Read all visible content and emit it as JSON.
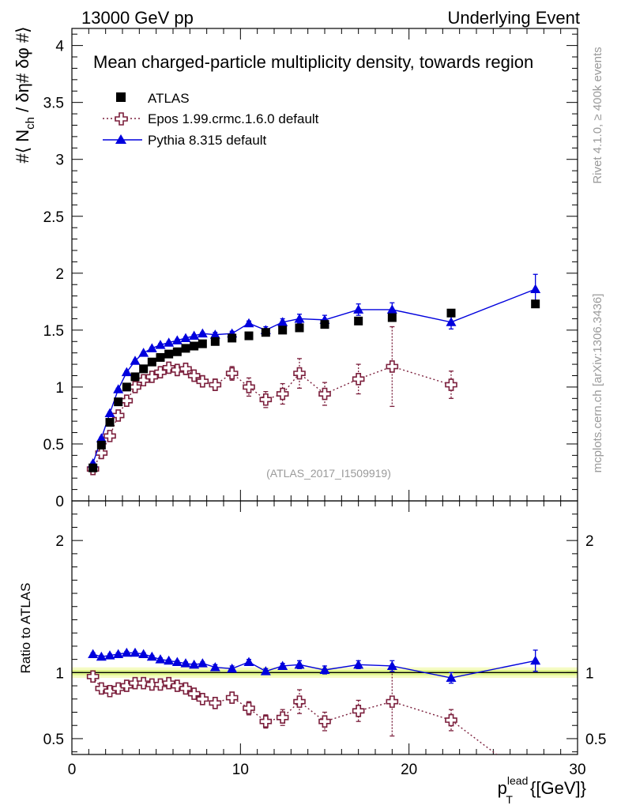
{
  "header": {
    "left": "13000 GeV pp",
    "right": "Underlying Event"
  },
  "side_labels": {
    "rivet": "Rivet 4.1.0, ≥ 400k events",
    "mcplots": "mcplots.cern.ch [arXiv:1306.3436]"
  },
  "chart_data": [
    {
      "type": "scatter",
      "panel": "main",
      "title": "Mean charged-particle multiplicity density, towards region",
      "watermark": "(ATLAS_2017_I1509919)",
      "ylabel": "#⟨ N_ch / δη# δφ #⟩",
      "ylabel_parts": {
        "pre": "#⟨ N",
        "sub": "ch",
        "post": " / δη# δφ #⟩"
      },
      "xlim": [
        0,
        30
      ],
      "ylim": [
        0,
        4.15
      ],
      "yticks": [
        0,
        0.5,
        1,
        1.5,
        2,
        2.5,
        3,
        3.5,
        4
      ],
      "ytick_labels": [
        "0",
        "0.5",
        "1",
        "1.5",
        "2",
        "2.5",
        "3",
        "3.5",
        "4"
      ],
      "legend": [
        {
          "label": "ATLAS",
          "series": "atlas"
        },
        {
          "label": "Epos 1.99.crmc.1.6.0 default",
          "series": "epos"
        },
        {
          "label": "Pythia 8.315 default",
          "series": "pythia"
        }
      ],
      "series": [
        {
          "key": "atlas",
          "name": "ATLAS",
          "color": "#000000",
          "marker": "square",
          "line": "none",
          "x": [
            1.25,
            1.75,
            2.25,
            2.75,
            3.25,
            3.75,
            4.25,
            4.75,
            5.25,
            5.75,
            6.25,
            6.75,
            7.25,
            7.75,
            8.5,
            9.5,
            10.5,
            11.5,
            12.5,
            13.5,
            15,
            17,
            19,
            22.5,
            27.5
          ],
          "y": [
            0.29,
            0.49,
            0.69,
            0.87,
            1.0,
            1.09,
            1.16,
            1.22,
            1.26,
            1.29,
            1.31,
            1.34,
            1.36,
            1.38,
            1.4,
            1.43,
            1.45,
            1.48,
            1.5,
            1.52,
            1.55,
            1.58,
            1.61,
            1.65,
            1.73
          ],
          "err": [
            0.01,
            0.01,
            0.01,
            0.01,
            0.01,
            0.01,
            0.01,
            0.01,
            0.01,
            0.01,
            0.01,
            0.01,
            0.01,
            0.01,
            0.01,
            0.01,
            0.01,
            0.01,
            0.01,
            0.01,
            0.01,
            0.02,
            0.02,
            0.02,
            0.03
          ]
        },
        {
          "key": "epos",
          "name": "Epos 1.99.crmc.1.6.0 default",
          "color": "#7b1f3c",
          "marker": "open-cross",
          "line": "dotted",
          "x": [
            1.25,
            1.75,
            2.25,
            2.75,
            3.25,
            3.75,
            4.25,
            4.75,
            5.25,
            5.75,
            6.25,
            6.75,
            7.25,
            7.75,
            8.5,
            9.5,
            10.5,
            11.5,
            12.5,
            13.5,
            15,
            17,
            19,
            22.5
          ],
          "y": [
            0.28,
            0.42,
            0.57,
            0.75,
            0.88,
            1.0,
            1.06,
            1.09,
            1.13,
            1.17,
            1.15,
            1.16,
            1.1,
            1.05,
            1.02,
            1.12,
            1.0,
            0.89,
            0.94,
            1.12,
            0.94,
            1.07,
            1.18,
            1.02
          ],
          "err": [
            0.02,
            0.03,
            0.03,
            0.03,
            0.03,
            0.04,
            0.04,
            0.04,
            0.04,
            0.04,
            0.05,
            0.05,
            0.05,
            0.05,
            0.05,
            0.06,
            0.08,
            0.07,
            0.09,
            0.13,
            0.1,
            0.13,
            0.35,
            0.12
          ]
        },
        {
          "key": "pythia",
          "name": "Pythia 8.315 default",
          "color": "#0000dd",
          "marker": "triangle",
          "line": "solid",
          "x": [
            1.25,
            1.75,
            2.25,
            2.75,
            3.25,
            3.75,
            4.25,
            4.75,
            5.25,
            5.75,
            6.25,
            6.75,
            7.25,
            7.75,
            8.5,
            9.5,
            10.5,
            11.5,
            12.5,
            13.5,
            15,
            17,
            19,
            22.5,
            27.5
          ],
          "y": [
            0.33,
            0.55,
            0.77,
            0.98,
            1.13,
            1.23,
            1.3,
            1.34,
            1.37,
            1.39,
            1.41,
            1.43,
            1.45,
            1.47,
            1.46,
            1.47,
            1.56,
            1.5,
            1.57,
            1.6,
            1.59,
            1.68,
            1.68,
            1.57,
            1.86
          ],
          "err": [
            0.01,
            0.01,
            0.01,
            0.01,
            0.01,
            0.01,
            0.01,
            0.01,
            0.01,
            0.01,
            0.01,
            0.01,
            0.01,
            0.01,
            0.02,
            0.02,
            0.02,
            0.03,
            0.03,
            0.04,
            0.04,
            0.05,
            0.06,
            0.06,
            0.13
          ]
        }
      ]
    },
    {
      "type": "scatter",
      "panel": "ratio",
      "ylabel": "Ratio to ATLAS",
      "xlabel": "p_T^lead {[GeV]}",
      "xlabel_parts": {
        "p": "p",
        "sub": "T",
        "sup": "lead",
        "rest": " {[GeV]}"
      },
      "xlim": [
        0,
        30
      ],
      "ylim": [
        0.38,
        2.3
      ],
      "yticks": [
        0.5,
        1,
        2
      ],
      "ytick_labels": [
        "0.5",
        "1",
        "2"
      ],
      "xticks": [
        0,
        10,
        20,
        30
      ],
      "xtick_labels": [
        "0",
        "10",
        "20",
        "30"
      ],
      "reference_band": {
        "center": 1.0,
        "inner": 0.02,
        "outer": 0.04
      },
      "series": [
        {
          "key": "epos",
          "color": "#7b1f3c",
          "marker": "open-cross",
          "line": "dotted",
          "x": [
            1.25,
            1.75,
            2.25,
            2.75,
            3.25,
            3.75,
            4.25,
            4.75,
            5.25,
            5.75,
            6.25,
            6.75,
            7.25,
            7.75,
            8.5,
            9.5,
            10.5,
            11.5,
            12.5,
            13.5,
            15,
            17,
            19,
            22.5,
            25.2
          ],
          "y": [
            0.97,
            0.88,
            0.86,
            0.88,
            0.9,
            0.92,
            0.92,
            0.91,
            0.91,
            0.92,
            0.9,
            0.88,
            0.84,
            0.8,
            0.77,
            0.81,
            0.73,
            0.63,
            0.66,
            0.78,
            0.63,
            0.71,
            0.78,
            0.64,
            0.38
          ],
          "err": [
            0.03,
            0.03,
            0.03,
            0.03,
            0.03,
            0.03,
            0.03,
            0.03,
            0.03,
            0.03,
            0.03,
            0.03,
            0.03,
            0.03,
            0.04,
            0.04,
            0.05,
            0.05,
            0.06,
            0.09,
            0.07,
            0.08,
            0.26,
            0.08,
            0
          ],
          "show_marker": [
            true,
            true,
            true,
            true,
            true,
            true,
            true,
            true,
            true,
            true,
            true,
            true,
            true,
            true,
            true,
            true,
            true,
            true,
            true,
            true,
            true,
            true,
            true,
            true,
            false
          ]
        },
        {
          "key": "pythia",
          "color": "#0000dd",
          "marker": "triangle",
          "line": "solid",
          "x": [
            1.25,
            1.75,
            2.25,
            2.75,
            3.25,
            3.75,
            4.25,
            4.75,
            5.25,
            5.75,
            6.25,
            6.75,
            7.25,
            7.75,
            8.5,
            9.5,
            10.5,
            11.5,
            12.5,
            13.5,
            15,
            17,
            19,
            22.5,
            27.5
          ],
          "y": [
            1.14,
            1.12,
            1.13,
            1.14,
            1.15,
            1.15,
            1.14,
            1.12,
            1.1,
            1.09,
            1.08,
            1.07,
            1.06,
            1.07,
            1.04,
            1.03,
            1.08,
            1.01,
            1.05,
            1.06,
            1.02,
            1.06,
            1.05,
            0.96,
            1.09
          ],
          "err": [
            0.01,
            0.01,
            0.01,
            0.01,
            0.01,
            0.01,
            0.01,
            0.01,
            0.01,
            0.01,
            0.01,
            0.01,
            0.01,
            0.01,
            0.02,
            0.02,
            0.02,
            0.02,
            0.02,
            0.03,
            0.03,
            0.03,
            0.04,
            0.04,
            0.08
          ],
          "show_marker": [
            true,
            true,
            true,
            true,
            true,
            true,
            true,
            true,
            true,
            true,
            true,
            true,
            true,
            true,
            true,
            true,
            true,
            true,
            true,
            true,
            true,
            true,
            true,
            true,
            true
          ]
        }
      ]
    }
  ],
  "colors": {
    "atlas": "#000000",
    "epos": "#7b1f3c",
    "pythia": "#0000dd",
    "band_inner": "#dff58a",
    "band_outer": "#f5fbc4",
    "side_text": "#9a9a9a",
    "watermark": "#9a9a9a"
  }
}
